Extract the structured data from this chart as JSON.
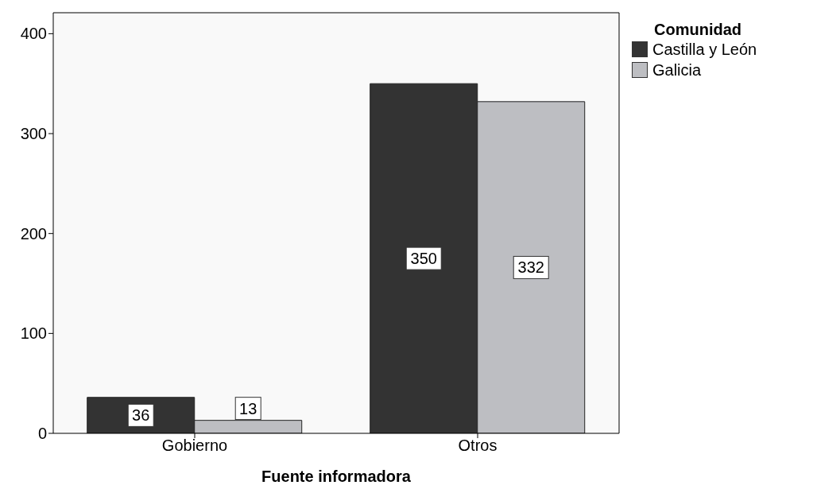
{
  "chart_data": {
    "type": "bar",
    "xlabel": "Fuente informadora",
    "legend_title": "Comunidad",
    "categories": [
      "Gobierno",
      "Otros"
    ],
    "series": [
      {
        "name": "Castilla y León",
        "color": "#333333",
        "values": [
          36,
          350
        ]
      },
      {
        "name": "Galicia",
        "color": "#bdbec2",
        "values": [
          13,
          332
        ]
      }
    ],
    "ylim": [
      0,
      421
    ],
    "yticks": [
      0,
      100,
      200,
      300,
      400
    ],
    "data_labels": true,
    "legend": "top right",
    "grid": false
  }
}
